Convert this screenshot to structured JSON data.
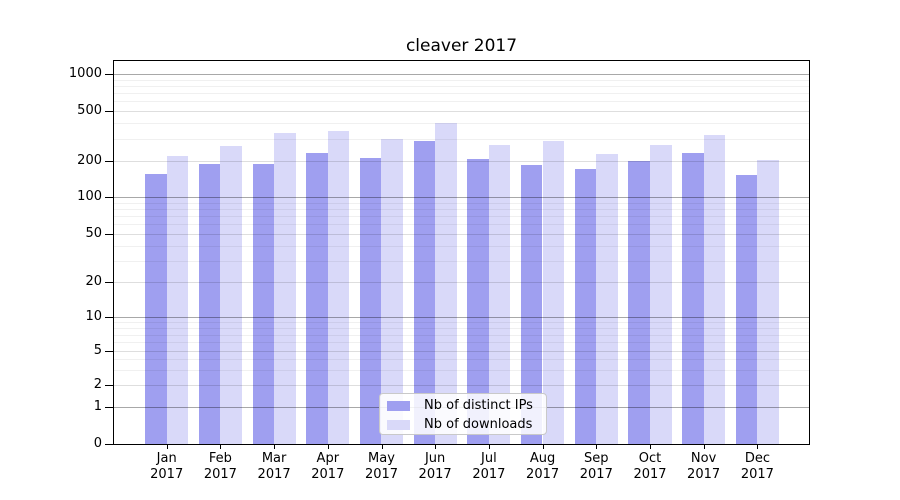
{
  "chart_data": {
    "type": "bar",
    "title": "cleaver 2017",
    "categories": [
      "Jan",
      "Feb",
      "Mar",
      "Apr",
      "May",
      "Jun",
      "Jul",
      "Aug",
      "Sep",
      "Oct",
      "Nov",
      "Dec"
    ],
    "x_year": "2017",
    "series": [
      {
        "name": "Nb of distinct IPs",
        "color": "#9f9ff0",
        "values": [
          155,
          190,
          190,
          232,
          213,
          287,
          208,
          184,
          173,
          199,
          231,
          152
        ]
      },
      {
        "name": "Nb of downloads",
        "color": "#d9d9f9",
        "values": [
          220,
          265,
          335,
          348,
          300,
          399,
          270,
          287,
          226,
          266,
          325,
          205
        ]
      }
    ],
    "y_ticks": [
      0,
      1,
      2,
      5,
      10,
      20,
      50,
      100,
      200,
      500,
      1000
    ],
    "y_axis_scale": "log-like (compressed linear segment below 2, log above)",
    "ylim": [
      0,
      1300
    ],
    "grid": true,
    "legend_position": "lower center"
  }
}
